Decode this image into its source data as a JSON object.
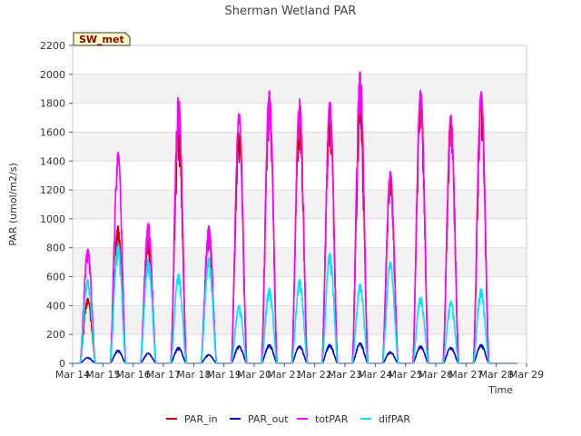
{
  "chart_data": {
    "type": "line",
    "title": "Sherman Wetland PAR",
    "badge": "SW_met",
    "xlabel": "Time",
    "ylabel": "PAR (umol/m2/s)",
    "ylim": [
      0,
      2200
    ],
    "yticks": [
      0,
      200,
      400,
      600,
      800,
      1000,
      1200,
      1400,
      1600,
      1800,
      2000,
      2200
    ],
    "xlim": [
      14,
      29
    ],
    "xticks": [
      {
        "value": 14,
        "label": "Mar 14"
      },
      {
        "value": 15,
        "label": "Mar 15"
      },
      {
        "value": 16,
        "label": "Mar 16"
      },
      {
        "value": 17,
        "label": "Mar 17"
      },
      {
        "value": 18,
        "label": "Mar 18"
      },
      {
        "value": 19,
        "label": "Mar 19"
      },
      {
        "value": 20,
        "label": "Mar 20"
      },
      {
        "value": 21,
        "label": "Mar 21"
      },
      {
        "value": 22,
        "label": "Mar 22"
      },
      {
        "value": 23,
        "label": "Mar 23"
      },
      {
        "value": 24,
        "label": "Mar 24"
      },
      {
        "value": 25,
        "label": "Mar 25"
      },
      {
        "value": 26,
        "label": "Mar 26"
      },
      {
        "value": 27,
        "label": "Mar 27"
      },
      {
        "value": 28,
        "label": "Mar 28"
      },
      {
        "value": 29,
        "label": "Mar 29"
      }
    ],
    "grid": true,
    "legend_position": "bottom",
    "series": [
      {
        "name": "PAR_in",
        "color": "#cc0000",
        "days": [
          14.5,
          15.5,
          16.5,
          17.5,
          18.5,
          19.5,
          20.5,
          21.5,
          22.5,
          23.5,
          24.5,
          25.5,
          26.5,
          27.5
        ],
        "peaks": [
          450,
          950,
          850,
          1650,
          900,
          1600,
          1850,
          1750,
          1780,
          1800,
          1300,
          1870,
          1700,
          1850
        ]
      },
      {
        "name": "PAR_out",
        "color": "#0000cc",
        "days": [
          14.5,
          15.5,
          16.5,
          17.5,
          18.5,
          19.5,
          20.5,
          21.5,
          22.5,
          23.5,
          24.5,
          25.5,
          26.5,
          27.5
        ],
        "peaks": [
          40,
          90,
          70,
          110,
          60,
          120,
          130,
          120,
          130,
          140,
          80,
          120,
          110,
          130
        ]
      },
      {
        "name": "totPAR",
        "color": "#ff00ff",
        "days": [
          14.5,
          15.5,
          16.5,
          17.5,
          18.5,
          19.5,
          20.5,
          21.5,
          22.5,
          23.5,
          24.5,
          25.5,
          26.5,
          27.5
        ],
        "peaks": [
          790,
          1460,
          970,
          1860,
          950,
          1730,
          1890,
          1830,
          1810,
          2020,
          1330,
          1890,
          1720,
          1880
        ]
      },
      {
        "name": "difPAR",
        "color": "#00e5ff",
        "days": [
          14.5,
          15.5,
          16.5,
          17.5,
          18.5,
          19.5,
          20.5,
          21.5,
          22.5,
          23.5,
          24.5,
          25.5,
          26.5,
          27.5
        ],
        "peaks": [
          580,
          830,
          720,
          620,
          730,
          400,
          520,
          580,
          760,
          550,
          700,
          460,
          430,
          520
        ]
      }
    ]
  }
}
